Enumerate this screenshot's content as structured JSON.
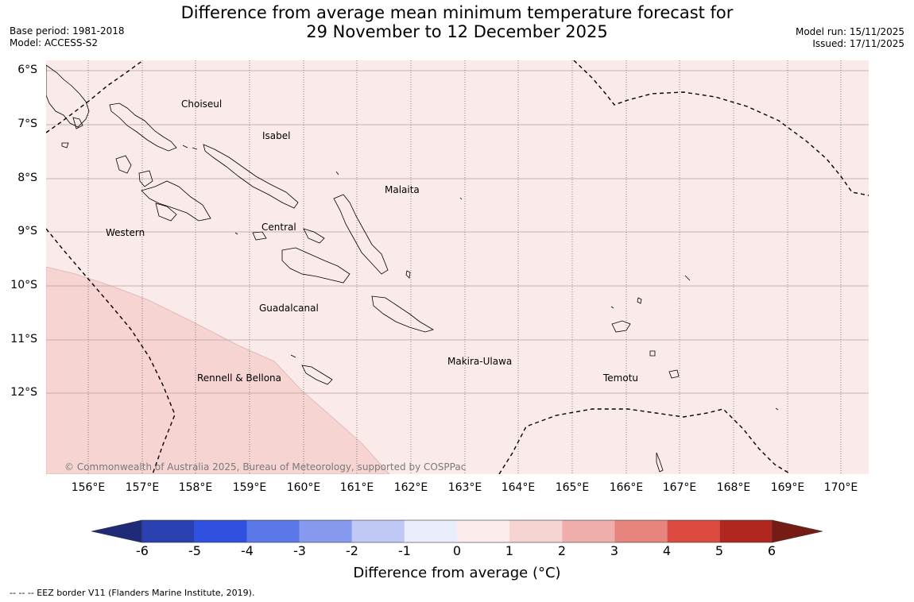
{
  "header": {
    "title_line1": "Difference from average mean minimum temperature forecast for",
    "title_line2": "29 November to 12 December 2025",
    "base_period": "Base period: 1981-2018",
    "model": "Model: ACCESS-S2",
    "model_run": "Model run: 15/11/2025",
    "issued": "Issued: 17/11/2025"
  },
  "map": {
    "latitude_labels": [
      "6°S",
      "7°S",
      "8°S",
      "9°S",
      "10°S",
      "11°S",
      "12°S"
    ],
    "longitude_labels": [
      "156°E",
      "157°E",
      "158°E",
      "159°E",
      "160°E",
      "161°E",
      "162°E",
      "163°E",
      "164°E",
      "165°E",
      "166°E",
      "167°E",
      "168°E",
      "169°E",
      "170°E"
    ],
    "regions": [
      "Choiseul",
      "Isabel",
      "Malaita",
      "Western",
      "Central",
      "Guadalcanal",
      "Makira-Ulawa",
      "Rennell & Bellona",
      "Temotu"
    ],
    "copyright": "© Commonwealth of Australia 2025, Bureau of Meteorology, supported by COSPPac",
    "colors": {
      "anomaly_0_1": "#fbeaea",
      "anomaly_1_2": "#f5d4d2",
      "coast": "#000000",
      "grid": "#b9a0a0"
    }
  },
  "colorbar": {
    "ticks": [
      "-6",
      "-5",
      "-4",
      "-3",
      "-2",
      "-1",
      "0",
      "1",
      "2",
      "3",
      "4",
      "5",
      "6"
    ],
    "colors": [
      "#1f2a78",
      "#2a40b0",
      "#3050e0",
      "#5a78e8",
      "#8599ee",
      "#c0c9f6",
      "#e9edfc",
      "#fcecec",
      "#f5d4d2",
      "#efaeab",
      "#e7847d",
      "#dd4a40",
      "#b0271f",
      "#761c16"
    ],
    "title": "Difference from average (°C)"
  },
  "footnote": "-- -- -- EEZ border V11 (Flanders Marine Institute, 2019)."
}
